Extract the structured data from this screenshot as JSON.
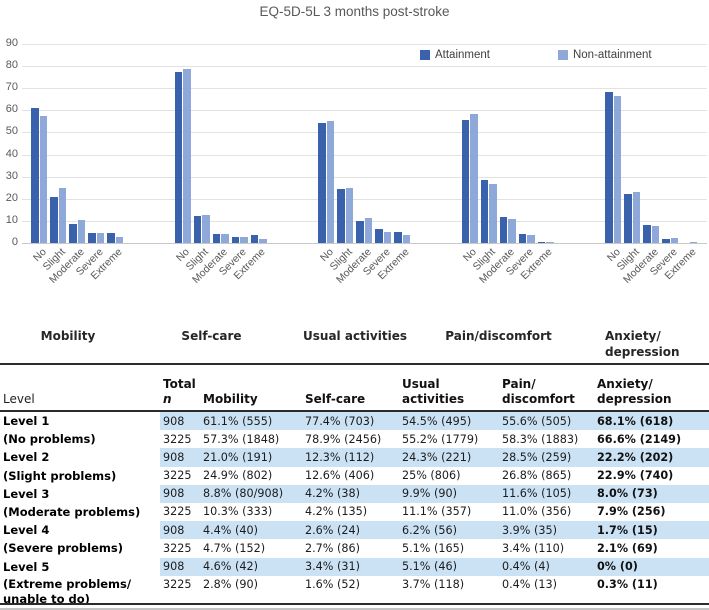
{
  "chart_data": {
    "type": "bar",
    "title": "EQ-5D-5L 3 months post-stroke",
    "categories": [
      "No",
      "Slight",
      "Moderate",
      "Severe",
      "Extreme"
    ],
    "dimension_labels": [
      {
        "lines": [
          "Mobility"
        ]
      },
      {
        "lines": [
          "Self-care"
        ]
      },
      {
        "lines": [
          "Usual activities"
        ]
      },
      {
        "lines": [
          "Pain/discomfort"
        ]
      },
      {
        "lines": [
          "Anxiety/",
          "depression"
        ]
      }
    ],
    "series": [
      {
        "name": "Attainment",
        "color": "#3a62ac",
        "values": [
          [
            61.1,
            21.0,
            8.8,
            4.4,
            4.6
          ],
          [
            77.4,
            12.3,
            4.2,
            2.6,
            3.4
          ],
          [
            54.5,
            24.3,
            9.9,
            6.2,
            5.1
          ],
          [
            55.6,
            28.5,
            11.6,
            3.9,
            0.4
          ],
          [
            68.1,
            22.2,
            8.0,
            1.7,
            0
          ]
        ]
      },
      {
        "name": "Non-attainment",
        "color": "#8fa8da",
        "values": [
          [
            57.3,
            24.9,
            10.3,
            4.7,
            2.8
          ],
          [
            78.9,
            12.6,
            4.2,
            2.7,
            1.6
          ],
          [
            55.2,
            25.0,
            11.1,
            5.1,
            3.7
          ],
          [
            58.3,
            26.8,
            11.0,
            3.4,
            0.4
          ],
          [
            66.6,
            22.9,
            7.9,
            2.1,
            0.3
          ]
        ]
      }
    ],
    "ylim": [
      0,
      90
    ],
    "yticks": [
      0,
      10,
      20,
      30,
      40,
      50,
      60,
      70,
      80,
      90
    ],
    "grid": "horizontal",
    "legend_position": "top-right"
  },
  "table": {
    "headers": [
      {
        "line1": "",
        "line2": "Level",
        "bold": false,
        "italic2": false
      },
      {
        "line1": "Total",
        "line2": "n",
        "bold": true,
        "italic2": true
      },
      {
        "line1": "",
        "line2": "Mobility",
        "bold": true,
        "italic2": false
      },
      {
        "line1": "",
        "line2": "Self-care",
        "bold": true,
        "italic2": false
      },
      {
        "line1": "Usual",
        "line2": "activities",
        "bold": true,
        "italic2": false
      },
      {
        "line1": "Pain/",
        "line2": "discomfort",
        "bold": true,
        "italic2": false
      },
      {
        "line1": "Anxiety/",
        "line2": "depression",
        "bold": true,
        "italic2": false
      }
    ],
    "row_groups": [
      {
        "level": "Level 1",
        "sublabel_lines": [
          "(No problems)"
        ],
        "subrows": [
          {
            "n": "908",
            "cells": [
              "61.1% (555)",
              "77.4% (703)",
              "54.5% (495)",
              "55.6% (505)",
              "68.1% (618)"
            ],
            "highlight": true
          },
          {
            "n": "3225",
            "cells": [
              "57.3% (1848)",
              "78.9% (2456)",
              "55.2% (1779)",
              "58.3% (1883)",
              "66.6% (2149)"
            ],
            "highlight": false
          }
        ]
      },
      {
        "level": "Level 2",
        "sublabel_lines": [
          "(Slight problems)"
        ],
        "subrows": [
          {
            "n": "908",
            "cells": [
              "21.0% (191)",
              "12.3% (112)",
              "24.3% (221)",
              "28.5% (259)",
              "22.2% (202)"
            ],
            "highlight": true
          },
          {
            "n": "3225",
            "cells": [
              "24.9% (802)",
              "12.6% (406)",
              "25% (806)",
              "26.8% (865)",
              "22.9% (740)"
            ],
            "highlight": false
          }
        ]
      },
      {
        "level": "Level 3",
        "sublabel_lines": [
          "(Moderate problems)"
        ],
        "subrows": [
          {
            "n": "908",
            "cells": [
              "8.8% (80/908)",
              "4.2% (38)",
              "9.9% (90)",
              "11.6% (105)",
              "8.0% (73)"
            ],
            "highlight": true
          },
          {
            "n": "3225",
            "cells": [
              "10.3% (333)",
              "4.2% (135)",
              "11.1% (357)",
              "11.0% (356)",
              "7.9% (256)"
            ],
            "highlight": false
          }
        ]
      },
      {
        "level": "Level 4",
        "sublabel_lines": [
          "(Severe problems)"
        ],
        "subrows": [
          {
            "n": "908",
            "cells": [
              "4.4% (40)",
              "2.6% (24)",
              "6.2% (56)",
              "3.9% (35)",
              "1.7% (15)"
            ],
            "highlight": true
          },
          {
            "n": "3225",
            "cells": [
              "4.7% (152)",
              "2.7% (86)",
              "5.1% (165)",
              "3.4% (110)",
              "2.1% (69)"
            ],
            "highlight": false
          }
        ]
      },
      {
        "level": "Level 5",
        "sublabel_lines": [
          "(Extreme problems/",
          "unable to do)"
        ],
        "subrows": [
          {
            "n": "908",
            "cells": [
              "4.6% (42)",
              "3.4% (31)",
              "5.1% (46)",
              "0.4% (4)",
              "0% (0)"
            ],
            "highlight": true
          },
          {
            "n": "3225",
            "cells": [
              "2.8% (90)",
              "1.6% (52)",
              "3.7% (118)",
              "0.4% (13)",
              "0.3% (11)"
            ],
            "highlight": false
          }
        ]
      }
    ],
    "highlight_color": "#cbe2f4"
  }
}
